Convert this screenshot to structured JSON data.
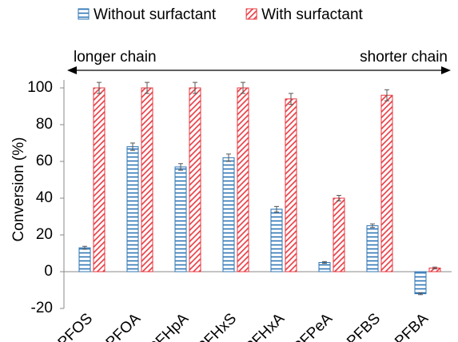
{
  "chart_data": {
    "type": "bar",
    "ylabel": "Conversion (%)",
    "annotations": [
      "longer chain",
      "shorter chain"
    ],
    "categories": [
      "PFOS",
      "PFOA",
      "PFHpA",
      "PFHxS",
      "PFHxA",
      "PFPeA",
      "PFBS",
      "PFBA"
    ],
    "series": [
      {
        "name": "Without surfactant",
        "color": "#2e75b6",
        "pattern": "horizontal",
        "values": [
          13,
          68,
          57,
          62,
          34,
          5,
          25,
          -12
        ],
        "errors": [
          0.8,
          2,
          1.8,
          2,
          1.5,
          0.5,
          1,
          0.5
        ]
      },
      {
        "name": "With surfactant",
        "color": "#e8343c",
        "pattern": "diagonal",
        "values": [
          100,
          100,
          100,
          100,
          94,
          40,
          96,
          2
        ],
        "errors": [
          3,
          3,
          3,
          3,
          3,
          1.5,
          3,
          0.5
        ]
      }
    ],
    "ylim": [
      -20,
      110
    ],
    "yticks": [
      -20,
      0,
      20,
      40,
      60,
      80,
      100
    ]
  }
}
